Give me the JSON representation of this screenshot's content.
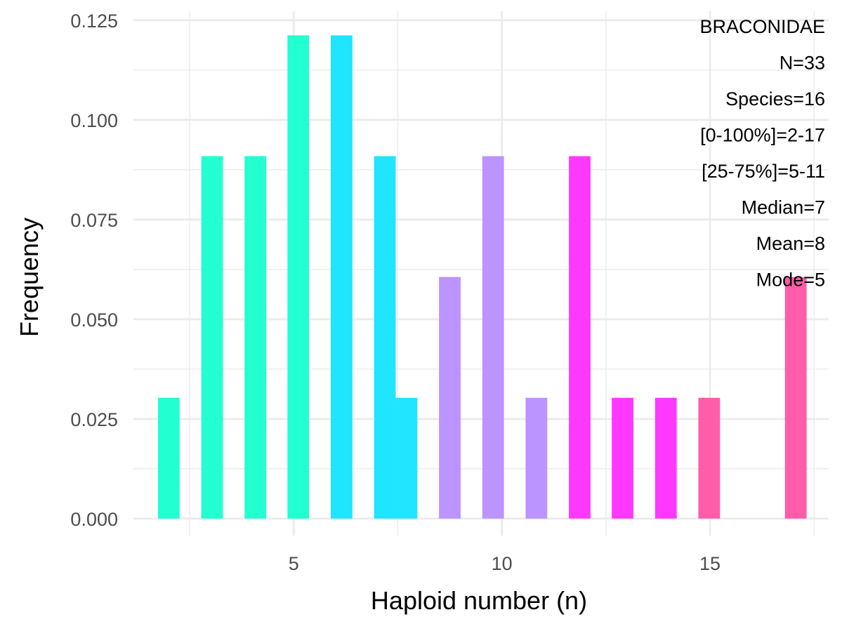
{
  "chart_data": {
    "type": "bar",
    "title": "",
    "xlabel": "Haploid number (n)",
    "ylabel": "Frequency",
    "xlim": [
      1.15,
      17.85
    ],
    "ylim": [
      -0.00425,
      0.12725
    ],
    "x_ticks": [
      5,
      10,
      15
    ],
    "x_tick_labels": [
      "5",
      "10",
      "15"
    ],
    "y_ticks": [
      0,
      0.025,
      0.05,
      0.075,
      0.1,
      0.125
    ],
    "y_tick_labels": [
      "0.000",
      "0.025",
      "0.050",
      "0.075",
      "0.100",
      "0.125"
    ],
    "grid": true,
    "bar_width": 0.52,
    "bars": [
      {
        "x": 2.0,
        "value": 0.0303,
        "color": "#22FFD1"
      },
      {
        "x": 3.04,
        "value": 0.0909,
        "color": "#22FFD1"
      },
      {
        "x": 4.08,
        "value": 0.0909,
        "color": "#22FFD1"
      },
      {
        "x": 5.11,
        "value": 0.1212,
        "color": "#22FFD1"
      },
      {
        "x": 6.15,
        "value": 0.1212,
        "color": "#1FE5FF"
      },
      {
        "x": 7.19,
        "value": 0.0909,
        "color": "#1FE5FF"
      },
      {
        "x": 7.71,
        "value": 0.0303,
        "color": "#1FE5FF"
      },
      {
        "x": 8.75,
        "value": 0.0606,
        "color": "#BB94FF"
      },
      {
        "x": 9.79,
        "value": 0.0909,
        "color": "#BB94FF"
      },
      {
        "x": 10.83,
        "value": 0.0303,
        "color": "#BB94FF"
      },
      {
        "x": 11.87,
        "value": 0.0909,
        "color": "#FF38FF"
      },
      {
        "x": 12.9,
        "value": 0.0303,
        "color": "#FF38FF"
      },
      {
        "x": 13.94,
        "value": 0.0303,
        "color": "#FF38FF"
      },
      {
        "x": 14.98,
        "value": 0.0303,
        "color": "#FF5CA9"
      },
      {
        "x": 17.06,
        "value": 0.0606,
        "color": "#FF5CA9"
      }
    ],
    "annotations": [
      "BRACONIDAE",
      "N=33",
      "Species=16",
      "[0-100%]=2-17",
      "[25-75%]=5-11",
      "Median=7",
      "Mean=8",
      "Mode=5"
    ],
    "colors": {
      "grid": "#EBEBEB",
      "tick_text": "#4D4D4D",
      "title_text": "#000000"
    }
  }
}
